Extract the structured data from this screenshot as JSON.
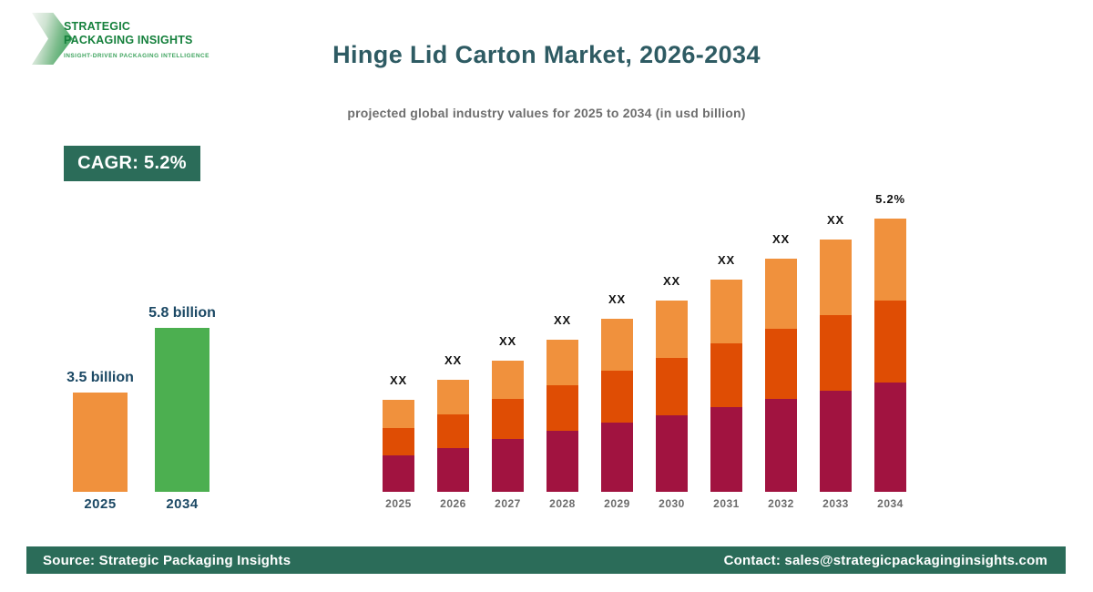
{
  "brand": {
    "logo_line1": "STRATEGIC",
    "logo_line2": "PACKAGING INSIGHTS",
    "tagline": "INSIGHT-DRIVEN PACKAGING INTELLIGENCE"
  },
  "header": {
    "title": "Hinge Lid Carton Market, 2026-2034",
    "subtitle": "projected global industry values for 2025 to 2034 (in usd billion)"
  },
  "cagr_badge": {
    "label": "CAGR: 5.2%"
  },
  "footer": {
    "source": "Source: Strategic Packaging Insights",
    "contact": "Contact: sales@strategicpackaginginsights.com"
  },
  "colors": {
    "brand_green_dark": "#15803C",
    "brand_green_light": "#3FA45F",
    "accent_green": "#2B6C59",
    "title_teal": "#2E5B63",
    "label_navy": "#1B4864",
    "bar_orange_light": "#F0913D",
    "bar_orange_dark": "#DF4D04",
    "bar_maroon": "#A11340",
    "bar_green": "#4CAF50"
  },
  "chart_data": [
    {
      "type": "bar",
      "name": "market-growth-summary",
      "categories": [
        "2025",
        "2034"
      ],
      "values": [
        3.5,
        5.8
      ],
      "value_labels": [
        "3.5 billion",
        "5.8 billion"
      ],
      "bar_colors": [
        "#F0913D",
        "#4CAF50"
      ],
      "unit": "usd billion",
      "axes_visible": false,
      "grid": false
    },
    {
      "type": "bar",
      "stacked": true,
      "name": "projected-values-by-year",
      "categories": [
        "2025",
        "2026",
        "2027",
        "2028",
        "2029",
        "2030",
        "2031",
        "2032",
        "2033",
        "2034"
      ],
      "series": [
        {
          "name": "bottom-segment",
          "color": "#A11340",
          "values": [
            40,
            48,
            58,
            67,
            76,
            84,
            93,
            102,
            111,
            120
          ]
        },
        {
          "name": "middle-segment",
          "color": "#DF4D04",
          "values": [
            30,
            37,
            44,
            50,
            57,
            63,
            70,
            77,
            83,
            90
          ]
        },
        {
          "name": "top-segment",
          "color": "#F0913D",
          "values": [
            31,
            38,
            42,
            50,
            57,
            63,
            70,
            77,
            83,
            90
          ]
        }
      ],
      "bar_labels": [
        "XX",
        "XX",
        "XX",
        "XX",
        "XX",
        "XX",
        "XX",
        "XX",
        "XX",
        "5.2%"
      ],
      "note": "numeric values masked as XX in source image; series values are relative bar heights",
      "value_axis_visible": false,
      "grid": false,
      "legend": "none"
    }
  ]
}
